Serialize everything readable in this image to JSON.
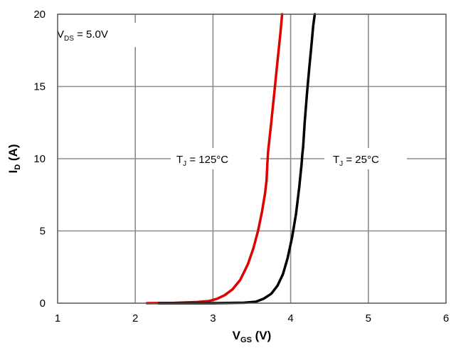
{
  "chart_data": {
    "type": "line",
    "title": "",
    "xlabel": {
      "main": "V",
      "sub": "GS",
      "unit": " (V)"
    },
    "ylabel": {
      "main": "I",
      "sub": "D",
      "unit": " (A)"
    },
    "xlim": [
      1,
      6
    ],
    "ylim": [
      0,
      20
    ],
    "xticks": [
      "1",
      "2",
      "3",
      "4",
      "5",
      "6"
    ],
    "yticks": [
      "0",
      "5",
      "10",
      "15",
      "20"
    ],
    "grid": true,
    "condition": {
      "main": "V",
      "sub": "DS",
      "value": " = 5.0V"
    },
    "series": [
      {
        "name": "TJ = 125°C",
        "label": {
          "main": "T",
          "sub": "J",
          "value": " = 125°C"
        },
        "color": "#e00000",
        "x": [
          2.15,
          2.5,
          2.8,
          2.95,
          3.05,
          3.15,
          3.25,
          3.35,
          3.45,
          3.52,
          3.58,
          3.63,
          3.67,
          3.69,
          3.7,
          3.71,
          3.75,
          3.79,
          3.83,
          3.87,
          3.89
        ],
        "y": [
          0.0,
          0.02,
          0.08,
          0.15,
          0.3,
          0.55,
          0.95,
          1.6,
          2.7,
          3.8,
          5.0,
          6.3,
          7.6,
          8.5,
          9.6,
          10.5,
          12.5,
          14.6,
          16.7,
          18.8,
          20.0
        ]
      },
      {
        "name": "TJ = 25°C",
        "label": {
          "main": "T",
          "sub": "J",
          "value": " = 25°C"
        },
        "color": "#000000",
        "x": [
          2.3,
          3.0,
          3.4,
          3.55,
          3.65,
          3.75,
          3.83,
          3.9,
          3.96,
          4.02,
          4.07,
          4.11,
          4.14,
          4.15,
          4.16,
          4.18,
          4.21,
          4.24,
          4.27,
          4.29,
          4.31
        ],
        "y": [
          0.0,
          0.0,
          0.03,
          0.1,
          0.3,
          0.65,
          1.2,
          2.0,
          3.1,
          4.6,
          6.2,
          8.0,
          9.6,
          10.3,
          10.8,
          12.5,
          14.5,
          16.3,
          18.0,
          19.2,
          20.0
        ]
      }
    ]
  }
}
